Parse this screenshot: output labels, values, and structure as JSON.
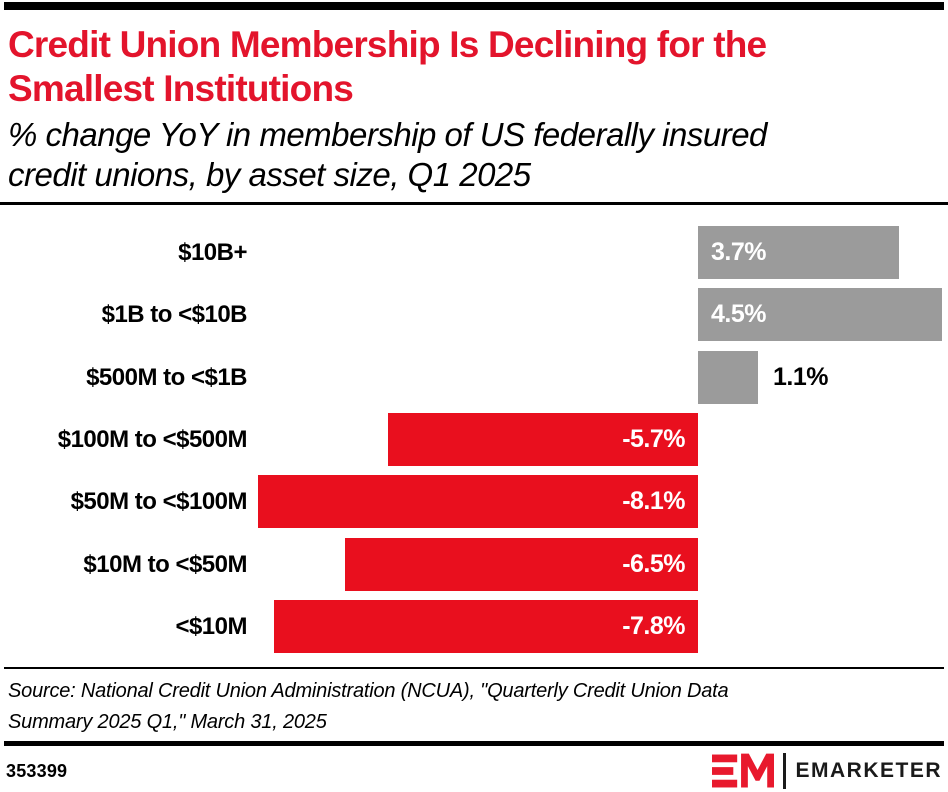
{
  "header": {
    "title": "Credit Union Membership Is Declining for the Smallest Institutions",
    "title_lines": [
      "Credit Union Membership Is Declining for the",
      "Smallest Institutions"
    ],
    "subtitle": "% change YoY in membership of US federally insured credit unions, by asset size, Q1 2025",
    "subtitle_lines": [
      "% change YoY in membership of US federally insured",
      "credit unions, by asset size, Q1 2025"
    ],
    "title_color": "#e3142c"
  },
  "chart_data": {
    "type": "bar",
    "orientation": "horizontal",
    "title": "Credit Union Membership Is Declining for the Smallest Institutions",
    "xlabel": "",
    "ylabel": "",
    "value_unit": "%",
    "xlim": [
      -8.3,
      4.6
    ],
    "grid": false,
    "legend": false,
    "categories": [
      "$10B+",
      "$1B to <$10B",
      "$500M to <$1B",
      "$100M to <$500M",
      "$50M to <$100M",
      "$10M to <$50M",
      "<$10M"
    ],
    "values": [
      3.7,
      4.5,
      1.1,
      -5.7,
      -8.1,
      -6.5,
      -7.8
    ],
    "labels": [
      "3.7%",
      "4.5%",
      "1.1%",
      "-5.7%",
      "-8.1%",
      "-6.5%",
      "-7.8%"
    ],
    "label_positions": [
      "inside-start",
      "inside-start",
      "outside-end",
      "inside-end",
      "inside-end",
      "inside-end",
      "inside-end"
    ],
    "label_colors": [
      "#ffffff",
      "#ffffff",
      "#000000",
      "#ffffff",
      "#ffffff",
      "#ffffff",
      "#ffffff"
    ],
    "positive_color": "#9b9b9b",
    "negative_color": "#e90f1e"
  },
  "footer": {
    "source_lines": [
      "Source: National Credit Union Administration (NCUA), \"Quarterly Credit Union Data",
      "Summary 2025 Q1,\" March 31, 2025"
    ],
    "source": "Source: National Credit Union Administration (NCUA), \"Quarterly Credit Union Data Summary 2025 Q1,\" March 31, 2025",
    "chart_id": "353399",
    "logo_text": "EMARKETER",
    "logo_color": "#e8192d"
  }
}
